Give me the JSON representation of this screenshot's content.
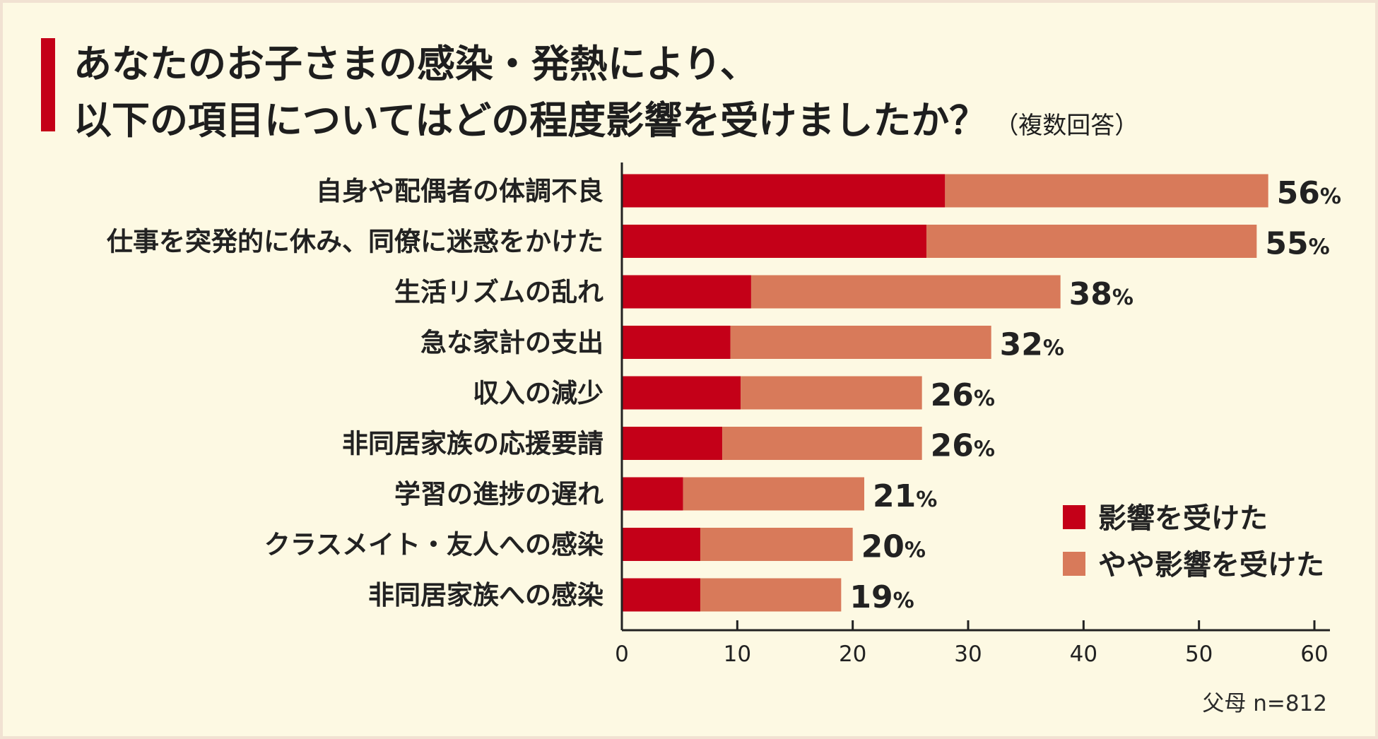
{
  "title": {
    "line1": "あなたのお子さまの感染・発熱により、",
    "line2": "以下の項目についてはどの程度影響を受けましたか？",
    "note": "（複数回答）"
  },
  "footnote": "父母 n=812",
  "colors": {
    "accent": "#c40018",
    "strong": "#c40018",
    "moderate": "#d87a5a",
    "background": "#fdf9e3"
  },
  "chart_data": {
    "type": "bar",
    "orientation": "horizontal",
    "stacked": true,
    "categories": [
      "自身や配偶者の体調不良",
      "仕事を突発的に休み、同僚に迷惑をかけた",
      "生活リズムの乱れ",
      "急な家計の支出",
      "収入の減少",
      "非同居家族の応援要請",
      "学習の進捗の遅れ",
      "クラスメイト・友人への感染",
      "非同居家族への感染"
    ],
    "series": [
      {
        "name": "影響を受けた",
        "color": "#c40018",
        "values": [
          28,
          26.4,
          11.2,
          9.4,
          10.3,
          8.7,
          5.3,
          6.8,
          6.8
        ]
      },
      {
        "name": "やや影響を受けた",
        "color": "#d87a5a",
        "values": [
          28,
          28.6,
          26.8,
          22.6,
          15.7,
          17.3,
          15.7,
          13.2,
          12.2
        ]
      }
    ],
    "totals": [
      56,
      55,
      38,
      32,
      26,
      26,
      21,
      20,
      19
    ],
    "total_labels": [
      "56",
      "55",
      "38",
      "32",
      "26",
      "26",
      "21",
      "20",
      "19"
    ],
    "unit": "%",
    "xlim": [
      0,
      60
    ],
    "xticks": [
      0,
      10,
      20,
      30,
      40,
      50,
      60
    ],
    "xtick_labels": [
      "0",
      "10",
      "20",
      "30",
      "40",
      "50",
      "60"
    ],
    "grid": false,
    "legend_position": "right"
  }
}
